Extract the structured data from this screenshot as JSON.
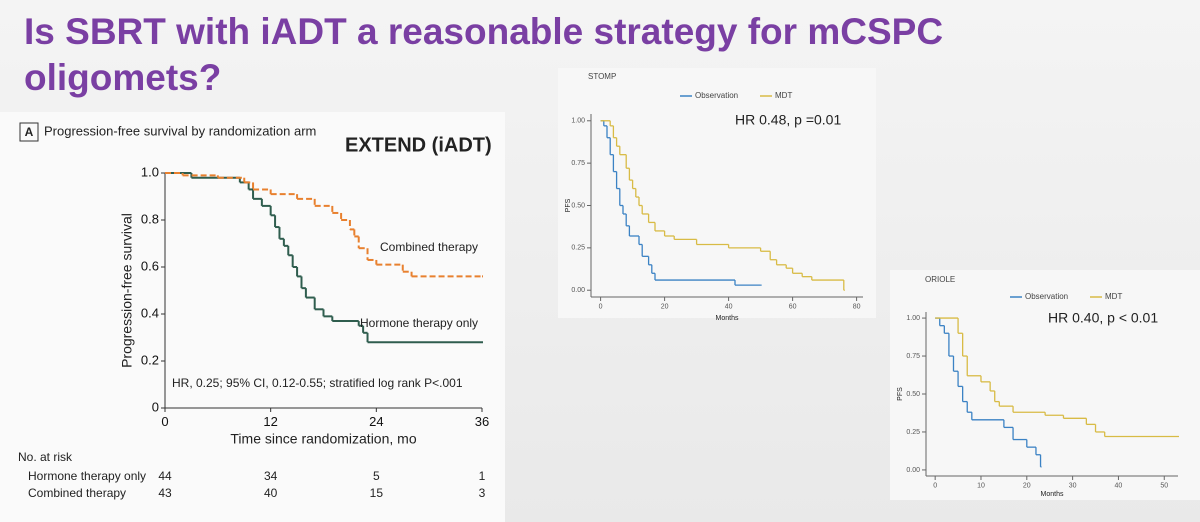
{
  "title": "Is SBRT with iADT a reasonable strategy for mCSPC oligomets?",
  "chart_data": [
    {
      "type": "step",
      "panel_label": "A",
      "title": "Progression-free survival by randomization arm",
      "heading": "EXTEND (iADT)",
      "xlabel": "Time since randomization, mo",
      "ylabel": "Progression-free survival",
      "annotation": "HR, 0.25; 95% CI, 0.12-0.55; stratified log rank P<.001",
      "xlim": [
        0,
        36
      ],
      "xticks": [
        0,
        12,
        24,
        36
      ],
      "ylim": [
        0,
        1
      ],
      "yticks": [
        0,
        0.2,
        0.4,
        0.6,
        0.8,
        {
          "value": 1,
          "label": "1.0"
        }
      ],
      "series": [
        {
          "name": "Hormone therapy only",
          "color": "#2f5d4e",
          "dash": false,
          "x": [
            0,
            3,
            8.5,
            9.5,
            10,
            11,
            12,
            12.5,
            13,
            13.5,
            14,
            14.5,
            15,
            15.5,
            16,
            17,
            18,
            19,
            22,
            22.5,
            23,
            36
          ],
          "values": [
            1,
            0.98,
            0.96,
            0.93,
            0.89,
            0.86,
            0.82,
            0.77,
            0.72,
            0.69,
            0.65,
            0.6,
            0.56,
            0.51,
            0.47,
            0.42,
            0.39,
            0.37,
            0.35,
            0.32,
            0.28,
            0.28
          ]
        },
        {
          "name": "Combined therapy",
          "color": "#e8802e",
          "dash": true,
          "x": [
            0,
            2,
            6,
            9,
            10,
            12,
            15,
            17,
            19,
            20,
            21,
            21.5,
            22,
            23,
            24,
            27,
            28,
            36
          ],
          "values": [
            1,
            0.99,
            0.98,
            0.96,
            0.93,
            0.91,
            0.89,
            0.86,
            0.83,
            0.8,
            0.76,
            0.73,
            0.68,
            0.63,
            0.61,
            0.58,
            0.56,
            0.56
          ]
        }
      ],
      "risk_table": {
        "title": "No. at risk",
        "rows": [
          {
            "name": "Hormone therapy only",
            "values": [
              44,
              34,
              5,
              1
            ]
          },
          {
            "name": "Combined therapy",
            "values": [
              43,
              40,
              15,
              3
            ]
          }
        ]
      }
    },
    {
      "type": "step",
      "title": "STOMP",
      "annotation": "HR 0.48, p =0.01",
      "xlabel": "Months",
      "ylabel": "PFS",
      "legend": "top",
      "xlim": [
        -3,
        82
      ],
      "xticks": [
        0,
        20,
        40,
        60,
        80
      ],
      "ylim": [
        -0.04,
        1.04
      ],
      "yticks": [
        {
          "value": 0,
          "label": "0.00"
        },
        {
          "value": 0.25,
          "label": "0.25"
        },
        {
          "value": 0.5,
          "label": "0.50"
        },
        {
          "value": 0.75,
          "label": "0.75"
        },
        {
          "value": 1,
          "label": "1.00"
        }
      ],
      "series": [
        {
          "name": "Observation",
          "color": "#3b82c4",
          "dash": false,
          "x": [
            0,
            1,
            2,
            3,
            4,
            5,
            6,
            7,
            8,
            9,
            12,
            13,
            15,
            16,
            17,
            42,
            50
          ],
          "values": [
            1,
            0.97,
            0.9,
            0.8,
            0.7,
            0.6,
            0.5,
            0.45,
            0.38,
            0.32,
            0.27,
            0.2,
            0.15,
            0.1,
            0.06,
            0.03,
            0.03
          ]
        },
        {
          "name": "MDT",
          "color": "#d8bb45",
          "dash": false,
          "x": [
            0,
            3,
            4,
            5,
            6,
            8,
            9,
            10,
            11,
            12,
            13,
            15,
            17,
            20,
            23,
            30,
            40,
            50,
            53,
            55,
            58,
            60,
            63,
            66,
            76
          ],
          "values": [
            1,
            0.97,
            0.9,
            0.85,
            0.8,
            0.72,
            0.65,
            0.6,
            0.55,
            0.5,
            0.45,
            0.4,
            0.35,
            0.32,
            0.3,
            0.27,
            0.25,
            0.23,
            0.18,
            0.15,
            0.13,
            0.1,
            0.08,
            0.06,
            0
          ]
        }
      ]
    },
    {
      "type": "step",
      "title": "ORIOLE",
      "annotation": "HR 0.40, p < 0.01",
      "xlabel": "Months",
      "ylabel": "PFS",
      "legend": "top",
      "xlim": [
        -2,
        53
      ],
      "xticks": [
        0,
        10,
        20,
        30,
        40,
        50
      ],
      "ylim": [
        -0.04,
        1.04
      ],
      "yticks": [
        {
          "value": 0,
          "label": "0.00"
        },
        {
          "value": 0.25,
          "label": "0.25"
        },
        {
          "value": 0.5,
          "label": "0.50"
        },
        {
          "value": 0.75,
          "label": "0.75"
        },
        {
          "value": 1,
          "label": "1.00"
        }
      ],
      "series": [
        {
          "name": "Observation",
          "color": "#3b82c4",
          "dash": false,
          "x": [
            0,
            1,
            2,
            3,
            4,
            5,
            6,
            7,
            8,
            15,
            17,
            20,
            22,
            23
          ],
          "values": [
            1,
            0.95,
            0.9,
            0.75,
            0.65,
            0.55,
            0.45,
            0.38,
            0.33,
            0.28,
            0.2,
            0.15,
            0.1,
            0.02
          ]
        },
        {
          "name": "MDT",
          "color": "#d8bb45",
          "dash": false,
          "x": [
            0,
            5,
            6,
            7,
            10,
            12,
            13,
            14,
            17,
            24,
            28,
            33,
            35,
            37,
            53
          ],
          "values": [
            1,
            0.9,
            0.75,
            0.62,
            0.58,
            0.52,
            0.45,
            0.42,
            0.38,
            0.36,
            0.34,
            0.3,
            0.25,
            0.22,
            0.22
          ]
        }
      ]
    }
  ]
}
